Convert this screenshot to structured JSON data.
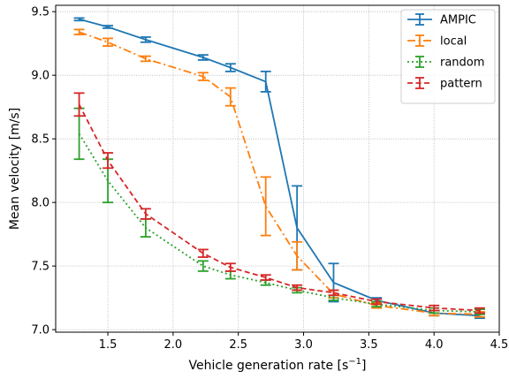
{
  "chart_data": {
    "type": "line",
    "xlabel_main": "Vehicle generation rate [s",
    "xlabel_sup": "−1",
    "xlabel_end": "]",
    "ylabel": "Mean velocity [m/s]",
    "xlim": [
      1.1,
      4.5
    ],
    "ylim": [
      6.98,
      9.55
    ],
    "xticks": [
      1.5,
      2.0,
      2.5,
      3.0,
      3.5,
      4.0,
      4.5
    ],
    "xtick_labels": [
      "1.5",
      "2.0",
      "2.5",
      "3.0",
      "3.5",
      "4.0",
      "4.5"
    ],
    "yticks": [
      7.0,
      7.5,
      8.0,
      8.5,
      9.0,
      9.5
    ],
    "ytick_labels": [
      "7.0",
      "7.5",
      "8.0",
      "8.5",
      "9.0",
      "9.5"
    ],
    "grid": true,
    "legend_position": "top-right",
    "series": [
      {
        "name": "AMPIC",
        "color": "#1f77b4",
        "dash": "solid",
        "x": [
          1.28,
          1.5,
          1.79,
          2.23,
          2.44,
          2.71,
          2.95,
          3.23,
          3.56,
          4.0,
          4.35
        ],
        "y": [
          9.44,
          9.38,
          9.28,
          9.14,
          9.06,
          8.95,
          7.8,
          7.37,
          7.23,
          7.13,
          7.11
        ],
        "err": [
          0.01,
          0.01,
          0.02,
          0.02,
          0.03,
          0.08,
          0.33,
          0.15,
          0.02,
          0.02,
          0.02
        ]
      },
      {
        "name": "local",
        "color": "#ff7f0e",
        "dash": "dashdot",
        "x": [
          1.28,
          1.5,
          1.79,
          2.23,
          2.44,
          2.71,
          2.95,
          3.23,
          3.56,
          4.0,
          4.35
        ],
        "y": [
          9.34,
          9.26,
          9.13,
          8.99,
          8.83,
          7.97,
          7.58,
          7.28,
          7.19,
          7.13,
          7.12
        ],
        "err": [
          0.02,
          0.03,
          0.02,
          0.03,
          0.07,
          0.23,
          0.11,
          0.03,
          0.02,
          0.02,
          0.02
        ]
      },
      {
        "name": "random",
        "color": "#2ca02c",
        "dash": "dotted",
        "x": [
          1.28,
          1.5,
          1.79,
          2.23,
          2.44,
          2.71,
          2.95,
          3.23,
          3.56,
          4.0,
          4.35
        ],
        "y": [
          8.54,
          8.17,
          7.8,
          7.5,
          7.43,
          7.37,
          7.31,
          7.25,
          7.2,
          7.15,
          7.14
        ],
        "err": [
          0.2,
          0.17,
          0.07,
          0.04,
          0.03,
          0.02,
          0.02,
          0.02,
          0.02,
          0.02,
          0.02
        ]
      },
      {
        "name": "pattern",
        "color": "#d62728",
        "dash": "dashed",
        "x": [
          1.28,
          1.5,
          1.79,
          2.23,
          2.44,
          2.71,
          2.95,
          3.23,
          3.56,
          4.0,
          4.35
        ],
        "y": [
          8.77,
          8.33,
          7.91,
          7.6,
          7.49,
          7.41,
          7.33,
          7.29,
          7.22,
          7.17,
          7.15
        ],
        "err": [
          0.09,
          0.06,
          0.04,
          0.03,
          0.03,
          0.02,
          0.02,
          0.02,
          0.02,
          0.02,
          0.02
        ]
      }
    ]
  }
}
